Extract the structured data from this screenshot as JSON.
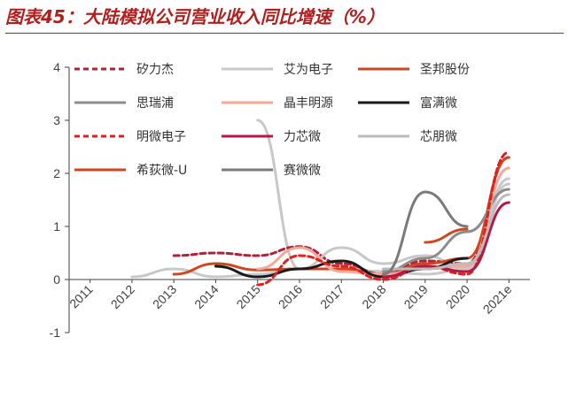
{
  "header": {
    "title": "图表45：大陆模拟公司营业收入同比增速（%）"
  },
  "chart_data": {
    "type": "line",
    "title": "图表45：大陆模拟公司营业收入同比增速（%）",
    "xlabel": "",
    "ylabel": "",
    "categories": [
      "2011",
      "2012",
      "2013",
      "2014",
      "2015",
      "2016",
      "2017",
      "2018",
      "2019",
      "2020",
      "2021e"
    ],
    "ylim": [
      -1,
      4
    ],
    "yticks": [
      "-1",
      "0",
      "1",
      "2",
      "3",
      "4"
    ],
    "grid": false,
    "legend_position": "top-left",
    "series": [
      {
        "name": "矽力杰",
        "color": "#b0213a",
        "dash": "6,4",
        "values": [
          null,
          null,
          0.45,
          0.5,
          0.45,
          0.62,
          0.3,
          0.1,
          0.35,
          0.3,
          2.3
        ]
      },
      {
        "name": "艾为电子",
        "color": "#c8c8c8",
        "dash": "",
        "values": [
          null,
          0.05,
          0.2,
          0.05,
          0.1,
          0.2,
          0.6,
          0.3,
          0.45,
          0.2,
          1.8
        ]
      },
      {
        "name": "圣邦股份",
        "color": "#d0461e",
        "dash": "",
        "values": [
          null,
          null,
          0.1,
          0.3,
          0.18,
          0.2,
          0.2,
          0.1,
          0.3,
          0.4,
          2.3
        ]
      },
      {
        "name": "思瑞浦",
        "color": "#8c8c8c",
        "dash": "",
        "values": [
          null,
          null,
          null,
          null,
          null,
          null,
          null,
          0.15,
          0.4,
          0.9,
          1.7
        ]
      },
      {
        "name": "晶丰明源",
        "color": "#f4a898",
        "dash": "",
        "values": [
          null,
          null,
          null,
          null,
          0.2,
          0.6,
          0.15,
          0.1,
          0.2,
          0.25,
          2.1
        ]
      },
      {
        "name": "富满微",
        "color": "#1a1a1a",
        "dash": "",
        "values": [
          null,
          null,
          null,
          0.25,
          0.05,
          0.2,
          0.35,
          0.05,
          0.2,
          0.4,
          null
        ]
      },
      {
        "name": "明微电子",
        "color": "#e02020",
        "dash": "6,4",
        "values": [
          null,
          null,
          null,
          null,
          -0.1,
          0.45,
          0.25,
          0.0,
          0.25,
          0.1,
          2.4
        ]
      },
      {
        "name": "力芯微",
        "color": "#b41846",
        "dash": "",
        "values": [
          null,
          null,
          null,
          null,
          null,
          null,
          null,
          0.05,
          0.25,
          0.15,
          1.45
        ]
      },
      {
        "name": "芯朋微",
        "color": "#bbbbbb",
        "dash": "",
        "values": [
          null,
          null,
          null,
          null,
          null,
          null,
          null,
          0.2,
          0.2,
          0.3,
          1.6
        ]
      },
      {
        "name": "希荻微-U",
        "color": "#d0461e",
        "dash": "",
        "values": [
          null,
          null,
          null,
          null,
          null,
          null,
          null,
          null,
          0.7,
          0.95,
          null
        ]
      },
      {
        "name": "赛微微",
        "color": "#7a7a7a",
        "dash": "",
        "values": [
          null,
          null,
          null,
          null,
          null,
          null,
          null,
          0.1,
          1.65,
          1.0,
          null
        ]
      }
    ],
    "extra_lines": [
      {
        "name": "",
        "color": "#c8c8c8",
        "dash": "",
        "values": [
          null,
          null,
          null,
          null,
          3.0,
          0.2,
          0.2,
          0.15,
          0.1,
          0.2,
          1.9
        ]
      }
    ]
  }
}
